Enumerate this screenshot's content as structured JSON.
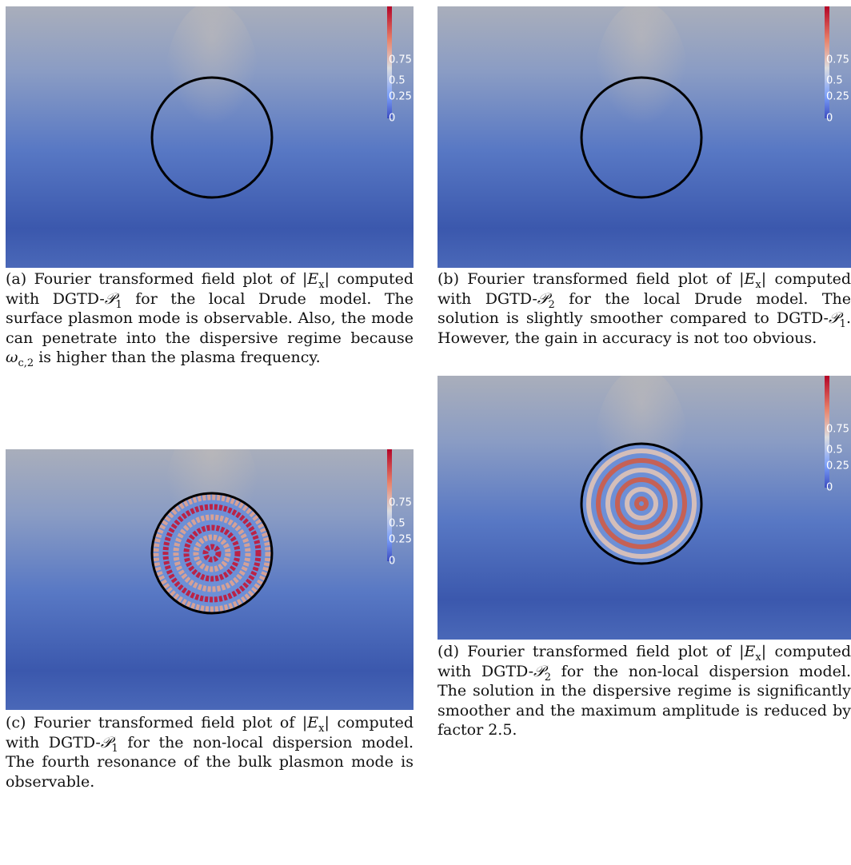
{
  "panels": [
    {
      "colorbar": [
        "0.75",
        "0.5",
        "0.25",
        "0"
      ],
      "caption": [
        {
          "t": "(a) Fourier transformed field plot of |"
        },
        {
          "t": "E",
          "k": "i"
        },
        {
          "t": "x",
          "k": "sub"
        },
        {
          "t": "| computed with DGTD-"
        },
        {
          "t": "𝒫",
          "k": "i"
        },
        {
          "t": "1",
          "k": "sub"
        },
        {
          "t": " for the local Drude model. The surface plasmon mode is observable. Also, the mode can penetrate into the dispersive regime because "
        },
        {
          "t": "ω",
          "k": "i"
        },
        {
          "t": "c,2",
          "k": "sub"
        },
        {
          "t": " is higher than the plasma frequency."
        }
      ]
    },
    {
      "colorbar": [
        "0.75",
        "0.5",
        "0.25",
        "0"
      ],
      "caption": [
        {
          "t": "(b) Fourier transformed field plot of |"
        },
        {
          "t": "E",
          "k": "i"
        },
        {
          "t": "x",
          "k": "sub"
        },
        {
          "t": "| computed with DGTD-"
        },
        {
          "t": "𝒫",
          "k": "i"
        },
        {
          "t": "2",
          "k": "sub"
        },
        {
          "t": " for the local Drude model. The solution is slightly smoother compared to DGTD-"
        },
        {
          "t": "𝒫",
          "k": "i"
        },
        {
          "t": "1",
          "k": "sub"
        },
        {
          "t": ". However, the gain in accuracy is not too obvious."
        }
      ]
    },
    {
      "colorbar": [
        "0.75",
        "0.5",
        "0.25",
        "0"
      ],
      "caption": [
        {
          "t": "(c) Fourier transformed field plot of |"
        },
        {
          "t": "E",
          "k": "i"
        },
        {
          "t": "x",
          "k": "sub"
        },
        {
          "t": "| computed with DGTD-"
        },
        {
          "t": "𝒫",
          "k": "i"
        },
        {
          "t": "1",
          "k": "sub"
        },
        {
          "t": " for the non-local dispersion model. The fourth resonance of the bulk plasmon mode is observable."
        }
      ]
    },
    {
      "colorbar": [
        "0.75",
        "0.5",
        "0.25",
        "0"
      ],
      "caption": [
        {
          "t": "(d) Fourier transformed field plot of |"
        },
        {
          "t": "E",
          "k": "i"
        },
        {
          "t": "x",
          "k": "sub"
        },
        {
          "t": "| computed with DGTD-"
        },
        {
          "t": "𝒫",
          "k": "i"
        },
        {
          "t": "2",
          "k": "sub"
        },
        {
          "t": " for the non-local dispersion model. The solution in the dispersive regime is significantly smoother and the maximum amplitude is reduced by factor 2.5."
        }
      ]
    }
  ]
}
